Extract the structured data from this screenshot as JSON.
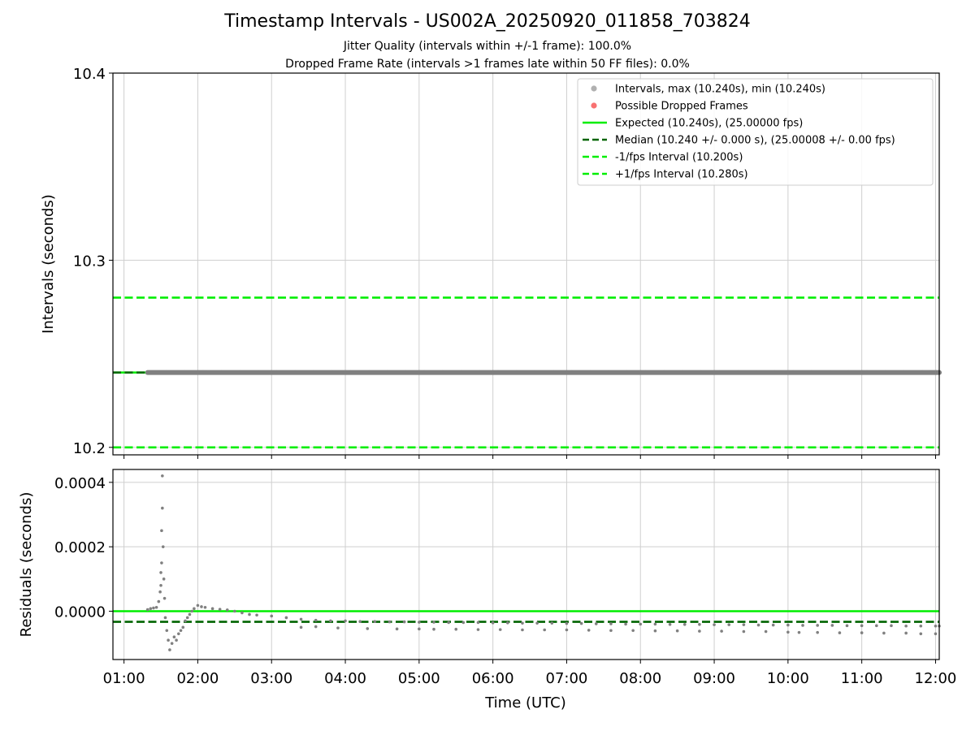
{
  "chart_data": [
    {
      "type": "scatter",
      "title": "Timestamp Intervals - US002A_20250920_011858_703824",
      "subtitle_lines": [
        "Jitter Quality (intervals within +/-1 frame): 100.0%",
        "Dropped Frame Rate (intervals >1 frames late within 50 FF files): 0.0%"
      ],
      "xlabel": "",
      "ylabel": "Intervals (seconds)",
      "xlim": [
        0.85,
        12.05
      ],
      "ylim": [
        10.196,
        10.4
      ],
      "yticks": [
        10.2,
        10.3,
        10.4
      ],
      "ytick_labels": [
        "10.2",
        "10.3",
        "10.4"
      ],
      "grid": true,
      "legend_location": "top-right",
      "legend": [
        {
          "label": "Intervals, max (10.240s), min (10.240s)",
          "kind": "dot",
          "color": "#b0b0b0"
        },
        {
          "label": "Possible Dropped Frames",
          "kind": "dot",
          "color": "#f87171"
        },
        {
          "label": "Expected (10.240s), (25.00000 fps)",
          "kind": "line",
          "color": "#00ee00"
        },
        {
          "label": "Median (10.240 +/- 0.000 s), (25.00008 +/- 0.00 fps)",
          "kind": "dash",
          "color": "#006400"
        },
        {
          "label": "-1/fps Interval (10.200s)",
          "kind": "dash",
          "color": "#00ee00"
        },
        {
          "label": "+1/fps Interval (10.280s)",
          "kind": "dash",
          "color": "#00ee00"
        }
      ],
      "reference_lines": [
        {
          "name": "expected",
          "y": 10.24,
          "style": "solid",
          "color": "#00ee00"
        },
        {
          "name": "median",
          "y": 10.24,
          "style": "dashed",
          "color": "#006400"
        },
        {
          "name": "minus-1-fps",
          "y": 10.2,
          "style": "dashed",
          "color": "#00ee00"
        },
        {
          "name": "plus-1-fps",
          "y": 10.28,
          "style": "dashed",
          "color": "#00ee00"
        }
      ],
      "series": [
        {
          "name": "Intervals",
          "x_start": 1.32,
          "x_end": 12.05,
          "y": 10.24,
          "color": "#808080"
        }
      ]
    },
    {
      "type": "scatter",
      "title": "",
      "xlabel": "Time (UTC)",
      "ylabel": "Residuals (seconds)",
      "xlim": [
        0.85,
        12.05
      ],
      "ylim": [
        -0.00015,
        0.00044
      ],
      "yticks": [
        0.0,
        0.0002,
        0.0004
      ],
      "ytick_labels": [
        "0.0000",
        "0.0002",
        "0.0004"
      ],
      "xticks": [
        1,
        2,
        3,
        4,
        5,
        6,
        7,
        8,
        9,
        10,
        11,
        12
      ],
      "xtick_labels": [
        "01:00",
        "02:00",
        "03:00",
        "04:00",
        "05:00",
        "06:00",
        "07:00",
        "08:00",
        "09:00",
        "10:00",
        "11:00",
        "12:00"
      ],
      "grid": true,
      "reference_lines": [
        {
          "name": "expected",
          "y": 0.0,
          "style": "solid",
          "color": "#00ee00"
        },
        {
          "name": "median",
          "y": -3.3e-05,
          "style": "dashed",
          "color": "#006400"
        }
      ],
      "series": [
        {
          "name": "Residuals",
          "color": "#808080",
          "x": [
            1.32,
            1.36,
            1.4,
            1.44,
            1.47,
            1.49,
            1.5,
            1.5,
            1.51,
            1.51,
            1.52,
            1.52,
            1.53,
            1.54,
            1.55,
            1.56,
            1.58,
            1.6,
            1.62,
            1.65,
            1.68,
            1.71,
            1.74,
            1.77,
            1.8,
            1.83,
            1.86,
            1.89,
            1.92,
            1.95,
            2.0,
            2.05,
            2.1,
            2.2,
            2.3,
            2.4,
            2.5,
            2.6,
            2.7,
            2.8,
            3.0,
            3.2,
            3.4,
            3.6,
            3.8,
            4.0,
            4.2,
            4.4,
            4.6,
            4.8,
            5.0,
            5.2,
            5.4,
            5.6,
            5.8,
            6.0,
            6.2,
            6.4,
            6.6,
            6.8,
            7.0,
            7.2,
            7.4,
            7.6,
            7.8,
            8.0,
            8.2,
            8.4,
            8.6,
            8.8,
            9.0,
            9.2,
            9.4,
            9.6,
            9.8,
            10.0,
            10.2,
            10.4,
            10.6,
            10.8,
            11.0,
            11.2,
            11.4,
            11.6,
            11.8,
            12.0,
            12.05
          ],
          "y": [
            5e-06,
            8e-06,
            1e-05,
            1.2e-05,
            3e-05,
            6e-05,
            8e-05,
            0.00012,
            0.00015,
            0.00025,
            0.00032,
            0.00042,
            0.0002,
            0.0001,
            4e-05,
            -2e-05,
            -6e-05,
            -9e-05,
            -0.00012,
            -0.0001,
            -8e-05,
            -9e-05,
            -7e-05,
            -6e-05,
            -5e-05,
            -3e-05,
            -2e-05,
            -1e-05,
            0.0,
            8e-06,
            1.8e-05,
            1.4e-05,
            1.2e-05,
            8e-06,
            6e-06,
            4e-06,
            0.0,
            -5e-06,
            -1e-05,
            -1.2e-05,
            -1.5e-05,
            -2e-05,
            -2.5e-05,
            -2.8e-05,
            -3e-05,
            -3e-05,
            -3.2e-05,
            -3.2e-05,
            -3.3e-05,
            -3.3e-05,
            -3.4e-05,
            -3.4e-05,
            -3.5e-05,
            -3.5e-05,
            -3.5e-05,
            -3.6e-05,
            -3.6e-05,
            -3.7e-05,
            -3.7e-05,
            -3.7e-05,
            -3.8e-05,
            -3.8e-05,
            -3.9e-05,
            -3.9e-05,
            -4e-05,
            -4e-05,
            -4e-05,
            -4.1e-05,
            -4.1e-05,
            -4.1e-05,
            -4.2e-05,
            -4.2e-05,
            -4.2e-05,
            -4.3e-05,
            -4.3e-05,
            -4.3e-05,
            -4.4e-05,
            -4.4e-05,
            -4.4e-05,
            -4.5e-05,
            -4.5e-05,
            -4.5e-05,
            -4.5e-05,
            -4.6e-05,
            -4.6e-05,
            -4.6e-05,
            -4.6e-05
          ]
        },
        {
          "name": "Residual outliers",
          "color": "#808080",
          "x": [
            3.4,
            3.6,
            3.9,
            4.3,
            4.7,
            5.0,
            5.2,
            5.5,
            5.8,
            6.1,
            6.4,
            6.7,
            7.0,
            7.3,
            7.6,
            7.9,
            8.2,
            8.5,
            8.8,
            9.1,
            9.4,
            9.7,
            10.0,
            10.15,
            10.4,
            10.7,
            11.0,
            11.3,
            11.6,
            11.8,
            12.0
          ],
          "y": [
            -5e-05,
            -4.8e-05,
            -5.2e-05,
            -5.4e-05,
            -5.5e-05,
            -5.5e-05,
            -5.6e-05,
            -5.6e-05,
            -5.7e-05,
            -5.7e-05,
            -5.8e-05,
            -5.8e-05,
            -5.8e-05,
            -5.9e-05,
            -6e-05,
            -6e-05,
            -6.1e-05,
            -6.1e-05,
            -6.2e-05,
            -6.2e-05,
            -6.3e-05,
            -6.3e-05,
            -6.5e-05,
            -6.6e-05,
            -6.6e-05,
            -6.7e-05,
            -6.7e-05,
            -6.8e-05,
            -6.8e-05,
            -7e-05,
            -7e-05
          ]
        }
      ]
    }
  ]
}
